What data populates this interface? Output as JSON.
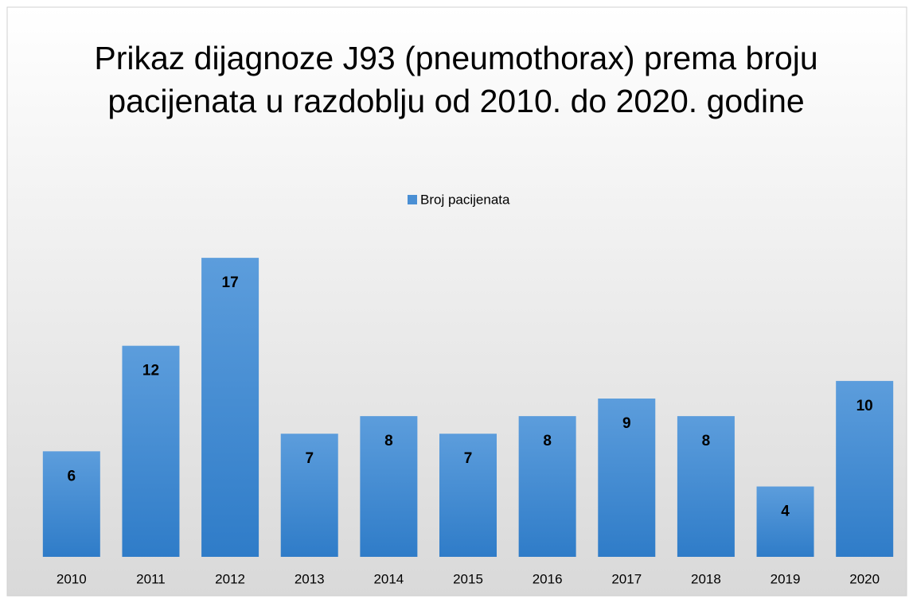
{
  "chart_data": {
    "type": "bar",
    "title": "Prikaz dijagnoze J93 (pneumothorax) prema broju pacijenata u razdoblju od 2010. do 2020. godine",
    "categories": [
      "2010",
      "2011",
      "2012",
      "2013",
      "2014",
      "2015",
      "2016",
      "2017",
      "2018",
      "2019",
      "2020"
    ],
    "series": [
      {
        "name": "Broj pacijenata",
        "color": "#4a8fd4",
        "values": [
          6,
          12,
          17,
          7,
          8,
          7,
          8,
          9,
          8,
          4,
          10
        ]
      }
    ],
    "ylim": [
      0,
      18
    ],
    "legend": "top"
  }
}
